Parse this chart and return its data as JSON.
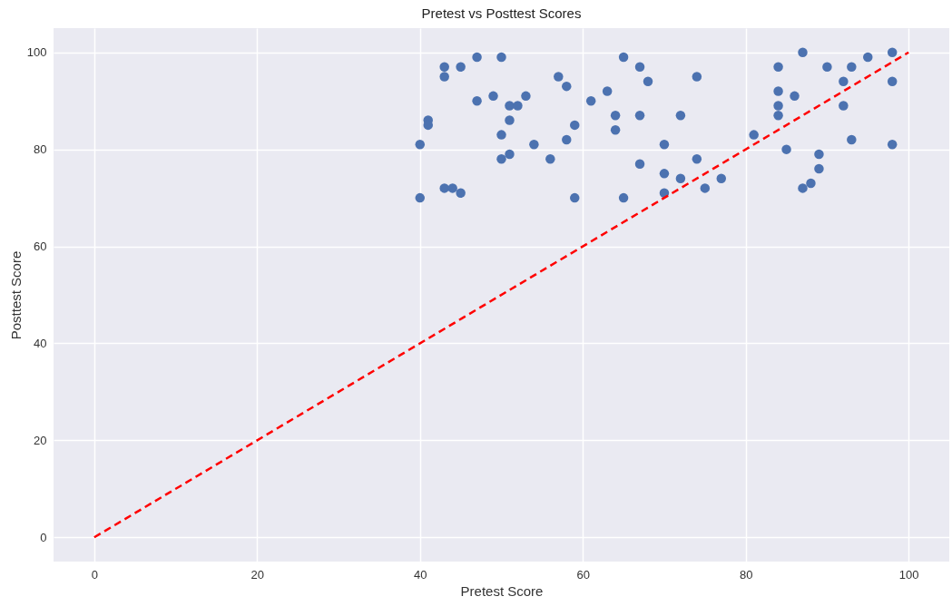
{
  "chart_data": {
    "type": "scatter",
    "title": "Pretest vs Posttest Scores",
    "xlabel": "Pretest Score",
    "ylabel": "Posttest Score",
    "xlim": [
      -5,
      105
    ],
    "ylim": [
      -5,
      105
    ],
    "xticks": [
      0,
      20,
      40,
      60,
      80,
      100
    ],
    "yticks": [
      0,
      20,
      40,
      60,
      80,
      100
    ],
    "grid": true,
    "series": [
      {
        "marker": "circle",
        "color": "#4c72b0",
        "x": [
          40,
          40,
          41,
          41,
          43,
          43,
          43,
          44,
          45,
          45,
          47,
          47,
          49,
          50,
          50,
          50,
          51,
          51,
          51,
          52,
          53,
          54,
          56,
          57,
          58,
          58,
          59,
          59,
          61,
          63,
          64,
          64,
          65,
          65,
          67,
          67,
          67,
          68,
          70,
          70,
          70,
          72,
          72,
          74,
          74,
          75,
          77,
          81,
          84,
          84,
          84,
          84,
          85,
          86,
          87,
          87,
          88,
          89,
          89,
          90,
          92,
          92,
          93,
          93,
          95,
          98,
          98,
          98
        ],
        "values": [
          81,
          70,
          86,
          85,
          97,
          95,
          72,
          72,
          71,
          97,
          99,
          90,
          91,
          99,
          83,
          78,
          89,
          86,
          79,
          89,
          91,
          81,
          78,
          95,
          93,
          82,
          85,
          70,
          90,
          92,
          87,
          84,
          99,
          70,
          97,
          87,
          77,
          94,
          81,
          75,
          71,
          87,
          74,
          95,
          78,
          72,
          74,
          83,
          97,
          92,
          89,
          87,
          80,
          91,
          100,
          72,
          73,
          79,
          76,
          97,
          94,
          89,
          97,
          82,
          99,
          100,
          94,
          81
        ]
      },
      {
        "type": "line",
        "color": "#ff0000",
        "line_style": "dashed",
        "x": [
          0,
          100
        ],
        "values": [
          0,
          100
        ]
      }
    ]
  }
}
